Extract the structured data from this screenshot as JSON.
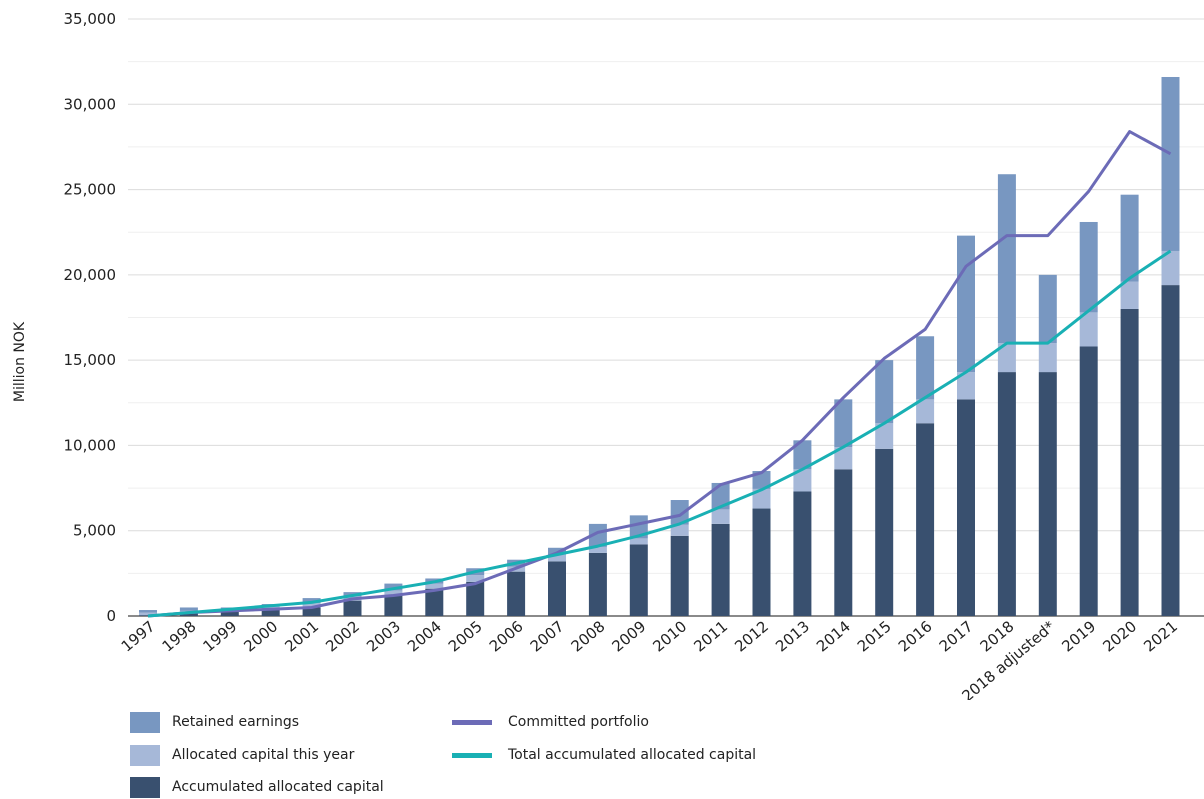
{
  "chart_data": {
    "type": "bar",
    "ylabel": "Million NOK",
    "xlabel": "",
    "ylim": [
      0,
      35000
    ],
    "yticks": [
      0,
      5000,
      10000,
      15000,
      20000,
      25000,
      30000,
      35000
    ],
    "ytick_labels": [
      "0",
      "5,000",
      "10,000",
      "15,000",
      "20,000",
      "25,000",
      "30,000",
      "35,000"
    ],
    "grid": "horizontal",
    "stacked": true,
    "categories": [
      "1997",
      "1998",
      "1999",
      "2000",
      "2001",
      "2002",
      "2003",
      "2004",
      "2005",
      "2006",
      "2007",
      "2008",
      "2009",
      "2010",
      "2011",
      "2012",
      "2013",
      "2014",
      "2015",
      "2016",
      "2017",
      "2018",
      "2018 adjusted*",
      "2019",
      "2020",
      "2021"
    ],
    "series": [
      {
        "name": "Accumulated allocated capital",
        "kind": "bar",
        "color": "#39506f",
        "values": [
          50,
          200,
          300,
          400,
          500,
          900,
          1200,
          1600,
          2000,
          2600,
          3200,
          3700,
          4200,
          4700,
          5400,
          6300,
          7300,
          8600,
          9800,
          11300,
          12700,
          14300,
          14300,
          15800,
          18000,
          19400
        ]
      },
      {
        "name": "Allocated capital this year",
        "kind": "bar",
        "color": "#a6b8d8",
        "values": [
          150,
          100,
          100,
          200,
          250,
          250,
          300,
          300,
          400,
          300,
          400,
          350,
          350,
          650,
          850,
          1150,
          1300,
          1300,
          1500,
          1400,
          1600,
          1700,
          1700,
          2000,
          1600,
          2000
        ]
      },
      {
        "name": "Retained earnings",
        "kind": "bar",
        "color": "#7897c1",
        "values": [
          150,
          200,
          100,
          100,
          300,
          250,
          400,
          300,
          400,
          400,
          400,
          1350,
          1350,
          1450,
          1550,
          1050,
          1700,
          2800,
          3700,
          3700,
          8000,
          9900,
          4000,
          5300,
          5100,
          10200
        ]
      },
      {
        "name": "Committed portfolio",
        "kind": "line",
        "color": "#6c6bb7",
        "values": [
          0,
          200,
          300,
          400,
          500,
          1000,
          1200,
          1500,
          1900,
          2800,
          3700,
          4900,
          5400,
          5900,
          7700,
          8400,
          10300,
          12800,
          15100,
          16800,
          20500,
          22300,
          22300,
          24900,
          28400,
          27100
        ]
      },
      {
        "name": "Total accumulated allocated capital",
        "kind": "line",
        "color": "#19b0b4",
        "values": [
          0,
          200,
          400,
          600,
          800,
          1200,
          1600,
          2000,
          2600,
          3100,
          3600,
          4100,
          4700,
          5400,
          6400,
          7400,
          8600,
          9900,
          11300,
          12800,
          14300,
          16000,
          16000,
          17900,
          19800,
          21400
        ]
      }
    ],
    "legend": {
      "placement": "bottom-left",
      "items": [
        {
          "label": "Retained earnings",
          "type": "box",
          "color": "#7897c1"
        },
        {
          "label": "Allocated capital this year",
          "type": "box",
          "color": "#a6b8d8"
        },
        {
          "label": "Accumulated allocated capital",
          "type": "box",
          "color": "#39506f"
        },
        {
          "label": "Committed portfolio",
          "type": "line",
          "color": "#6c6bb7"
        },
        {
          "label": "Total accumulated allocated capital",
          "type": "line",
          "color": "#19b0b4"
        }
      ]
    }
  }
}
